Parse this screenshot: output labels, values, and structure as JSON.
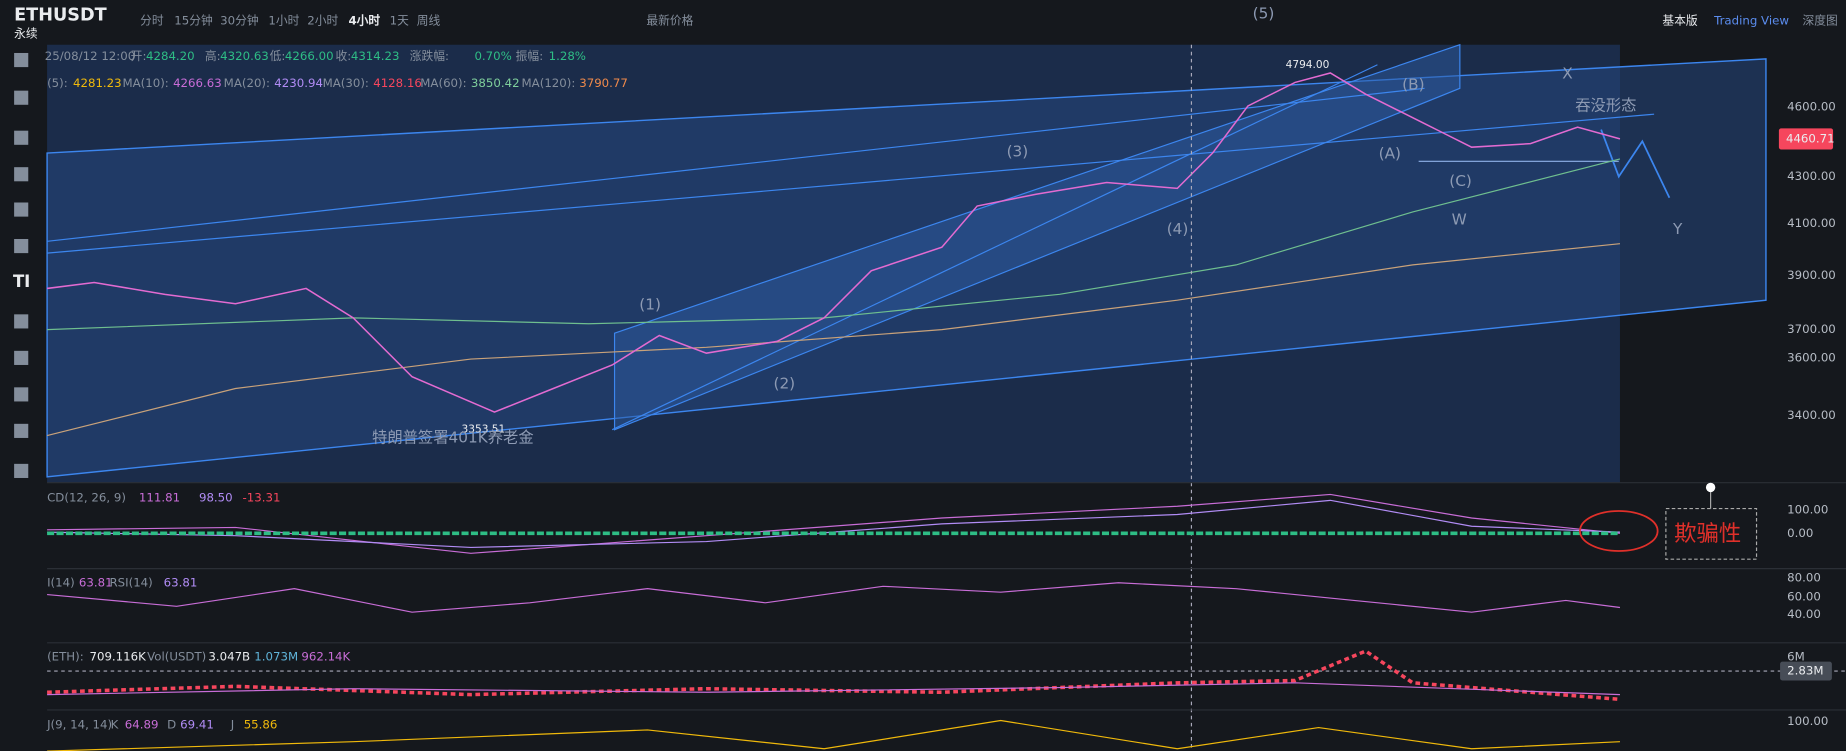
{
  "toolbar": {
    "symbol": "ETHUSDT",
    "contract": "永续",
    "intervals": [
      "分时",
      "15分钟",
      "30分钟",
      "1小时",
      "2小时",
      "4小时",
      "1天",
      "周线"
    ],
    "price_type": "最新价格",
    "views": [
      "基本版",
      "Trading View",
      "深度图"
    ],
    "tool_text": "TI"
  },
  "ohlc": {
    "time": "25/08/12 12:00",
    "items": [
      {
        "label": "开:",
        "value": "4284.20"
      },
      {
        "label": "高:",
        "value": "4320.63"
      },
      {
        "label": "低:",
        "value": "4266.00"
      },
      {
        "label": "收:",
        "value": "4314.23"
      },
      {
        "label": "涨跌幅:",
        "value": "0.70%"
      },
      {
        "label": "振幅:",
        "value": "1.28%"
      }
    ]
  },
  "ma": [
    {
      "label": "(5):",
      "value": "4281.23"
    },
    {
      "label": "MA(10):",
      "value": "4266.63"
    },
    {
      "label": "MA(20):",
      "value": "4230.94"
    },
    {
      "label": "MA(30):",
      "value": "4128.16"
    },
    {
      "label": "MA(60):",
      "value": "3850.42"
    },
    {
      "label": "MA(120):",
      "value": "3790.77"
    }
  ],
  "price_axis": [
    "4600.00",
    "4300.00",
    "4100.00",
    "3900.00",
    "3700.00",
    "3600.00",
    "3400.00"
  ],
  "current_price": "4460.71",
  "annotations": [
    "(5)",
    "4794.00",
    "(B)",
    "X",
    "吞没形态",
    "(A)",
    "(C)",
    "W",
    "Y",
    "(3)",
    "(4)",
    "(1)",
    "(2)",
    "3353.51",
    "特朗普签署401K养老金"
  ],
  "macd": {
    "label": "CD(12, 26, 9)",
    "values": [
      "111.81",
      "98.50",
      "-13.31"
    ],
    "axis": [
      "100.00",
      "0.00"
    ],
    "note": "欺骗性"
  },
  "rsi": {
    "label": "I(14)",
    "value": "63.81",
    "label2": "RSI(14)",
    "value2": "63.81",
    "axis": [
      "80.00",
      "60.00",
      "40.00"
    ]
  },
  "volume": {
    "label": "(ETH):",
    "value": "709.116K",
    "label2": "Vol(USDT)",
    "values": [
      "3.047B",
      "1.073M",
      "962.14K"
    ],
    "axis": "6M",
    "marker": "2.83M"
  },
  "kdj": {
    "label": "J(9, 14, 14)",
    "items": [
      {
        "label": "K",
        "value": "64.89"
      },
      {
        "label": "D",
        "value": "69.41"
      },
      {
        "label": "J",
        "value": "55.86"
      }
    ],
    "axis": "100.00"
  }
}
